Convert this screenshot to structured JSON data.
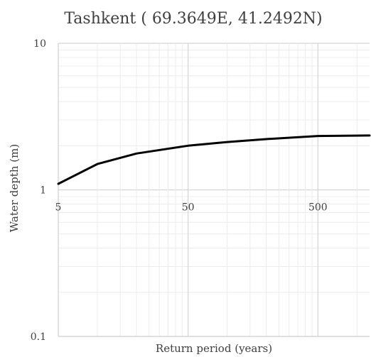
{
  "chart_data": {
    "type": "line",
    "title": "Tashkent ( 69.3649E, 41.2492N)",
    "xlabel": "Return period (years)",
    "ylabel": "Water depth (m)",
    "x_scale": "log",
    "y_scale": "log",
    "xlim": [
      5,
      1250
    ],
    "ylim": [
      0.1,
      10
    ],
    "x_ticks": [
      {
        "value": 5,
        "label": "5"
      },
      {
        "value": 50,
        "label": "50"
      },
      {
        "value": 500,
        "label": "500"
      }
    ],
    "y_ticks": [
      {
        "value": 10,
        "label": "10"
      },
      {
        "value": 1,
        "label": "1"
      },
      {
        "value": 0.1,
        "label": "0.1"
      }
    ],
    "grid": true,
    "legend": "none",
    "series": [
      {
        "color": "#000000",
        "x": [
          5,
          10,
          20,
          50,
          100,
          200,
          500,
          1250
        ],
        "y": [
          1.1,
          1.5,
          1.77,
          2.0,
          2.12,
          2.22,
          2.33,
          2.35
        ]
      }
    ]
  }
}
